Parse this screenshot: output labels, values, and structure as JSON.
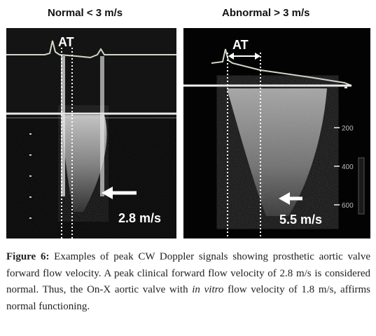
{
  "panels": {
    "left": {
      "title": "Normal < 3 m/s",
      "at_label": "AT",
      "velocity_label": "2.8 m/s"
    },
    "right": {
      "title": "Abnormal > 3 m/s",
      "at_label": "AT",
      "velocity_label": "5.5 m/s",
      "scale_ticks": [
        "200",
        "400",
        "600"
      ]
    }
  },
  "caption": {
    "figure_label": "Figure 6:",
    "text_1": " Examples of peak CW Doppler signals showing prosthetic aortic valve forward flow velocity. A peak clinical forward flow velocity of 2.8 m/s is considered normal. Thus, the On-X aortic valve with ",
    "text_italic": "in vitro",
    "text_2": " flow velocity of 1.8 m/s, affirms normal functioning."
  },
  "colors": {
    "echo_bg": "#000000",
    "overlay": "#ffffff",
    "doppler_gray": "#9a9a9a",
    "ecg_trace": "#cfd8c8"
  }
}
